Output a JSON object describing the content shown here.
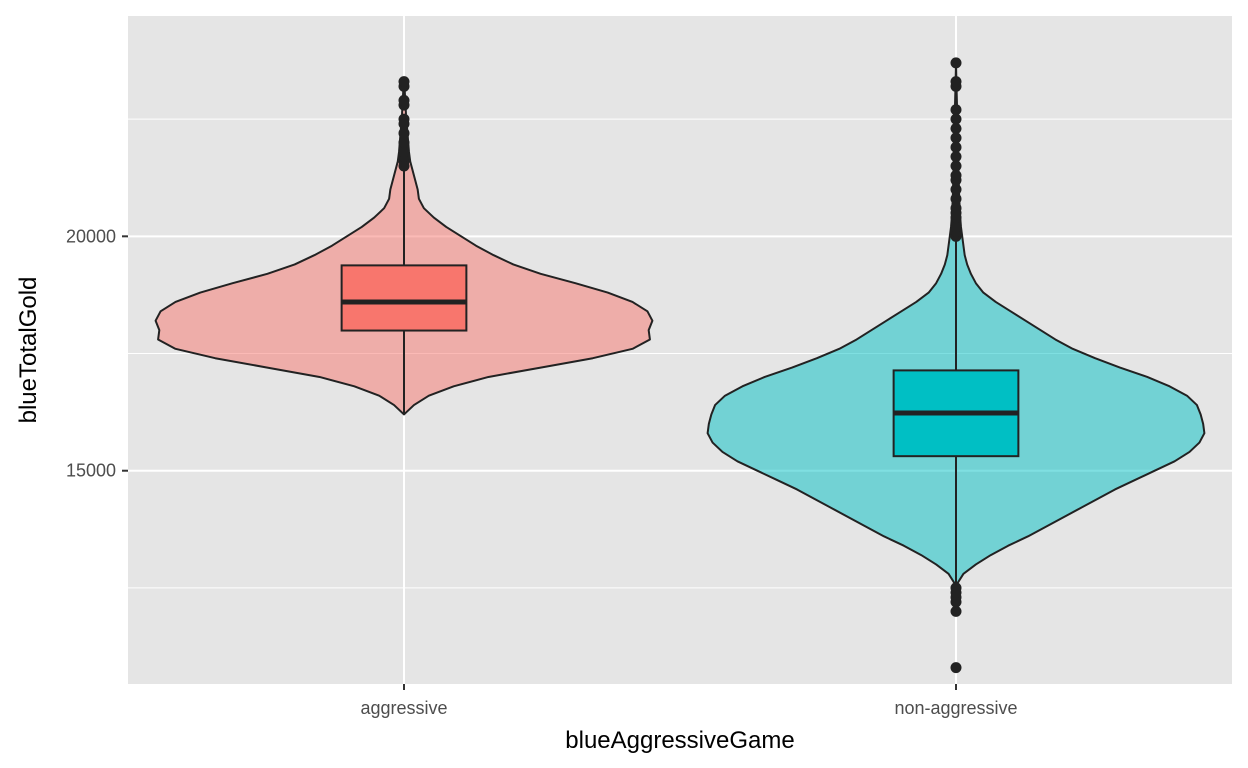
{
  "chart_data": {
    "type": "violin",
    "xlabel": "blueAggressiveGame",
    "ylabel": "blueTotalGold",
    "categories": [
      "aggressive",
      "non-aggressive"
    ],
    "ylim": [
      10450,
      24700
    ],
    "y_ticks": [
      15000,
      20000
    ],
    "grid": true,
    "legend": "none",
    "colors": {
      "panel_background": "#e5e5e5",
      "grid": "#ffffff",
      "outline": "#222222",
      "aggressive": "#f8766d",
      "non-aggressive": "#00bfc4"
    },
    "series": [
      {
        "category": "aggressive",
        "box": {
          "lower_whisker": 16200,
          "q1": 17990,
          "median": 18600,
          "q3": 19380,
          "upper_whisker": 21450
        },
        "outliers": [
          21500,
          21600,
          21700,
          21800,
          21900,
          22000,
          22200,
          22400,
          22500,
          22800,
          22900,
          23200,
          23300
        ],
        "density": [
          [
            16200,
            0.0
          ],
          [
            16400,
            0.04
          ],
          [
            16600,
            0.1
          ],
          [
            16800,
            0.2
          ],
          [
            17000,
            0.34
          ],
          [
            17200,
            0.55
          ],
          [
            17400,
            0.76
          ],
          [
            17600,
            0.92
          ],
          [
            17800,
            0.99
          ],
          [
            18000,
            0.985
          ],
          [
            18200,
            1.0
          ],
          [
            18400,
            0.98
          ],
          [
            18600,
            0.92
          ],
          [
            18800,
            0.82
          ],
          [
            19000,
            0.69
          ],
          [
            19200,
            0.55
          ],
          [
            19400,
            0.44
          ],
          [
            19600,
            0.36
          ],
          [
            19800,
            0.29
          ],
          [
            20000,
            0.23
          ],
          [
            20200,
            0.17
          ],
          [
            20400,
            0.12
          ],
          [
            20600,
            0.08
          ],
          [
            20800,
            0.06
          ],
          [
            21000,
            0.055
          ],
          [
            21200,
            0.045
          ],
          [
            21400,
            0.035
          ],
          [
            21600,
            0.025
          ],
          [
            21800,
            0.02
          ],
          [
            22000,
            0.017
          ],
          [
            22200,
            0.014
          ],
          [
            22400,
            0.011
          ],
          [
            22600,
            0.008
          ],
          [
            22800,
            0.006
          ],
          [
            23000,
            0.004
          ],
          [
            23200,
            0.002
          ],
          [
            23300,
            0.0
          ]
        ]
      },
      {
        "category": "non-aggressive",
        "box": {
          "lower_whisker": 12550,
          "q1": 15310,
          "median": 16230,
          "q3": 17140,
          "upper_whisker": 19950
        },
        "outliers": [
          10800,
          12000,
          12200,
          12300,
          12400,
          12500,
          20000,
          20100,
          20200,
          20300,
          20400,
          20500,
          20600,
          20800,
          21000,
          21200,
          21300,
          21500,
          21700,
          21900,
          22100,
          22300,
          22500,
          22700,
          23200,
          23300,
          23700
        ],
        "density": [
          [
            12550,
            0.0
          ],
          [
            12800,
            0.03
          ],
          [
            13000,
            0.08
          ],
          [
            13200,
            0.14
          ],
          [
            13400,
            0.21
          ],
          [
            13600,
            0.29
          ],
          [
            13800,
            0.36
          ],
          [
            14000,
            0.43
          ],
          [
            14200,
            0.5
          ],
          [
            14400,
            0.57
          ],
          [
            14600,
            0.64
          ],
          [
            14800,
            0.72
          ],
          [
            15000,
            0.8
          ],
          [
            15200,
            0.88
          ],
          [
            15400,
            0.94
          ],
          [
            15600,
            0.98
          ],
          [
            15800,
            1.0
          ],
          [
            16000,
            0.995
          ],
          [
            16200,
            0.985
          ],
          [
            16400,
            0.97
          ],
          [
            16600,
            0.93
          ],
          [
            16800,
            0.86
          ],
          [
            17000,
            0.77
          ],
          [
            17200,
            0.66
          ],
          [
            17400,
            0.56
          ],
          [
            17600,
            0.47
          ],
          [
            17800,
            0.4
          ],
          [
            18000,
            0.34
          ],
          [
            18200,
            0.28
          ],
          [
            18400,
            0.22
          ],
          [
            18600,
            0.16
          ],
          [
            18800,
            0.11
          ],
          [
            19000,
            0.08
          ],
          [
            19200,
            0.06
          ],
          [
            19400,
            0.045
          ],
          [
            19600,
            0.035
          ],
          [
            19800,
            0.03
          ],
          [
            20000,
            0.025
          ],
          [
            20200,
            0.02
          ],
          [
            20400,
            0.017
          ],
          [
            20800,
            0.013
          ],
          [
            21200,
            0.011
          ],
          [
            21600,
            0.009
          ],
          [
            22000,
            0.007
          ],
          [
            22400,
            0.005
          ],
          [
            22800,
            0.004
          ],
          [
            23200,
            0.002
          ],
          [
            23700,
            0.0
          ]
        ]
      }
    ]
  }
}
